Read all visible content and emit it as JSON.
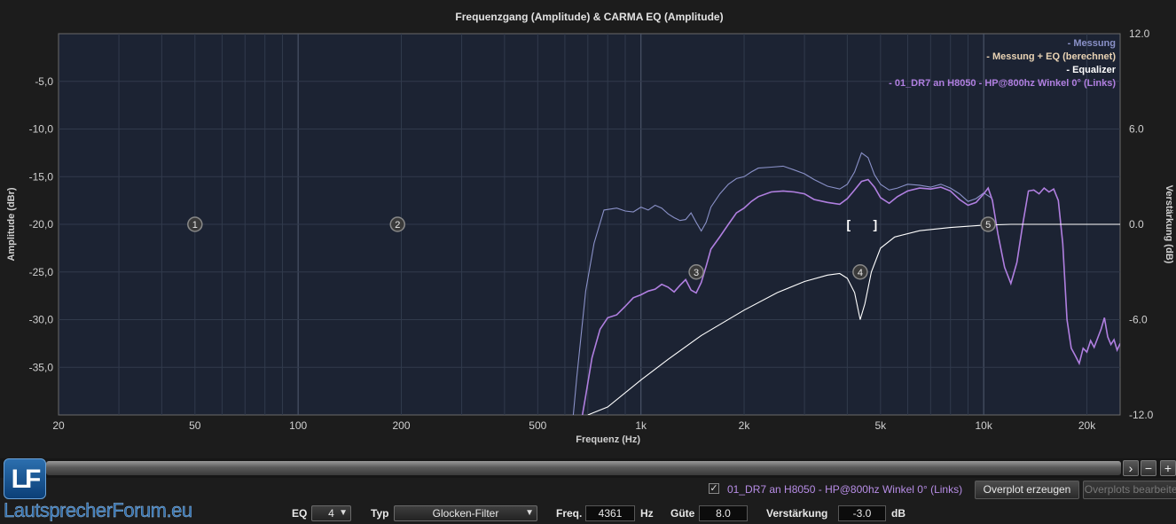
{
  "chart_data": {
    "type": "line",
    "title": "Frequenzgang (Amplitude) & CARMA EQ (Amplitude)",
    "xlabel": "Frequenz (Hz)",
    "ylabel": "Amplitude (dBr)",
    "y2label": "Verstärkung (dB)",
    "xscale": "log",
    "xlim": [
      20,
      25000
    ],
    "ylim": [
      -40,
      0
    ],
    "y2lim": [
      -12,
      12
    ],
    "x_ticks": [
      {
        "v": 20,
        "label": "20"
      },
      {
        "v": 50,
        "label": "50"
      },
      {
        "v": 100,
        "label": "100"
      },
      {
        "v": 200,
        "label": "200"
      },
      {
        "v": 500,
        "label": "500"
      },
      {
        "v": 1000,
        "label": "1k"
      },
      {
        "v": 2000,
        "label": "2k"
      },
      {
        "v": 5000,
        "label": "5k"
      },
      {
        "v": 10000,
        "label": "10k"
      },
      {
        "v": 20000,
        "label": "20k"
      }
    ],
    "y_ticks": [
      {
        "v": -5,
        "label": "-5,0"
      },
      {
        "v": -10,
        "label": "-10,0"
      },
      {
        "v": -15,
        "label": "-15,0"
      },
      {
        "v": -20,
        "label": "-20,0"
      },
      {
        "v": -25,
        "label": "-25,0"
      },
      {
        "v": -30,
        "label": "-30,0"
      },
      {
        "v": -35,
        "label": "-35,0"
      }
    ],
    "y2_ticks": [
      {
        "v": 12,
        "label": "12.0"
      },
      {
        "v": 6,
        "label": "6.0"
      },
      {
        "v": 0,
        "label": "0.0"
      },
      {
        "v": -6,
        "label": "-6.0"
      },
      {
        "v": -12,
        "label": "-12.0"
      }
    ],
    "grid": true,
    "legend_position": "top-right",
    "legend": [
      {
        "label": "- Messung",
        "color": "#8a91c8"
      },
      {
        "label": "- Messung + EQ (berechnet)",
        "color": "#e9d3b4"
      },
      {
        "label": "- Equalizer",
        "color": "#ffffff"
      },
      {
        "label": "- 01_DR7 an H8050 - HP@800hz Winkel 0° (Links)",
        "color": "#b07fe0"
      }
    ],
    "series": [
      {
        "name": "- Messung",
        "color": "#8a91c8",
        "axis": "left",
        "points": [
          [
            635,
            -40
          ],
          [
            650,
            -36
          ],
          [
            690,
            -27
          ],
          [
            730,
            -22
          ],
          [
            780,
            -18.5
          ],
          [
            850,
            -18.3
          ],
          [
            900,
            -18.6
          ],
          [
            950,
            -18.7
          ],
          [
            1000,
            -18.2
          ],
          [
            1050,
            -18.5
          ],
          [
            1100,
            -18.0
          ],
          [
            1150,
            -18.3
          ],
          [
            1200,
            -18.9
          ],
          [
            1250,
            -19.3
          ],
          [
            1300,
            -19.6
          ],
          [
            1350,
            -19.5
          ],
          [
            1400,
            -18.8
          ],
          [
            1450,
            -19.8
          ],
          [
            1500,
            -20.7
          ],
          [
            1550,
            -19.8
          ],
          [
            1600,
            -18.2
          ],
          [
            1700,
            -16.8
          ],
          [
            1800,
            -15.8
          ],
          [
            1900,
            -15.2
          ],
          [
            2000,
            -15.0
          ],
          [
            2100,
            -14.5
          ],
          [
            2200,
            -14.1
          ],
          [
            2400,
            -14.0
          ],
          [
            2600,
            -13.9
          ],
          [
            2800,
            -14.3
          ],
          [
            3000,
            -14.7
          ],
          [
            3200,
            -15.3
          ],
          [
            3500,
            -16.0
          ],
          [
            3800,
            -16.3
          ],
          [
            4000,
            -15.8
          ],
          [
            4200,
            -14.5
          ],
          [
            4400,
            -12.5
          ],
          [
            4600,
            -13.0
          ],
          [
            4800,
            -14.8
          ],
          [
            5000,
            -15.8
          ],
          [
            5300,
            -16.4
          ],
          [
            5600,
            -16.2
          ],
          [
            6000,
            -15.8
          ],
          [
            6500,
            -15.9
          ],
          [
            7000,
            -16.1
          ],
          [
            7500,
            -15.8
          ],
          [
            8000,
            -16.2
          ],
          [
            8500,
            -16.8
          ],
          [
            9000,
            -17.6
          ],
          [
            9500,
            -17.3
          ],
          [
            10000,
            -16.7
          ],
          [
            10500,
            -17.2
          ]
        ]
      },
      {
        "name": "- 01_DR7 an H8050 - HP@800hz Winkel 0° (Links)",
        "color": "#b07fe0",
        "axis": "left",
        "points": [
          [
            675,
            -40
          ],
          [
            690,
            -38
          ],
          [
            720,
            -34
          ],
          [
            760,
            -31
          ],
          [
            800,
            -29.8
          ],
          [
            850,
            -29.5
          ],
          [
            900,
            -28.6
          ],
          [
            950,
            -27.7
          ],
          [
            1000,
            -27.4
          ],
          [
            1050,
            -27.0
          ],
          [
            1100,
            -26.8
          ],
          [
            1150,
            -26.3
          ],
          [
            1200,
            -26.6
          ],
          [
            1250,
            -27.1
          ],
          [
            1300,
            -26.4
          ],
          [
            1350,
            -25.8
          ],
          [
            1400,
            -26.9
          ],
          [
            1450,
            -27.2
          ],
          [
            1500,
            -26.1
          ],
          [
            1550,
            -24.4
          ],
          [
            1600,
            -22.6
          ],
          [
            1700,
            -21.3
          ],
          [
            1800,
            -20.0
          ],
          [
            1900,
            -18.8
          ],
          [
            2000,
            -18.3
          ],
          [
            2100,
            -17.6
          ],
          [
            2200,
            -17.1
          ],
          [
            2400,
            -16.6
          ],
          [
            2600,
            -16.5
          ],
          [
            2800,
            -16.6
          ],
          [
            3000,
            -16.8
          ],
          [
            3200,
            -17.4
          ],
          [
            3500,
            -17.7
          ],
          [
            3800,
            -17.9
          ],
          [
            4000,
            -17.3
          ],
          [
            4200,
            -16.4
          ],
          [
            4400,
            -15.5
          ],
          [
            4600,
            -15.3
          ],
          [
            4800,
            -16.1
          ],
          [
            5000,
            -17.2
          ],
          [
            5300,
            -17.8
          ],
          [
            5600,
            -17.1
          ],
          [
            6000,
            -16.5
          ],
          [
            6500,
            -16.2
          ],
          [
            7000,
            -16.3
          ],
          [
            7500,
            -16.1
          ],
          [
            8000,
            -16.5
          ],
          [
            8500,
            -17.4
          ],
          [
            9000,
            -18.0
          ],
          [
            9500,
            -17.7
          ],
          [
            10000,
            -16.8
          ],
          [
            10300,
            -16.2
          ],
          [
            10600,
            -17.5
          ],
          [
            11000,
            -21.0
          ],
          [
            11500,
            -24.5
          ],
          [
            12000,
            -26.2
          ],
          [
            12500,
            -24.0
          ],
          [
            13000,
            -20.0
          ],
          [
            13500,
            -16.5
          ],
          [
            14000,
            -16.4
          ],
          [
            14500,
            -16.8
          ],
          [
            15000,
            -16.2
          ],
          [
            15500,
            -16.6
          ],
          [
            16000,
            -16.3
          ],
          [
            16500,
            -17.5
          ],
          [
            17000,
            -22.0
          ],
          [
            17500,
            -30.0
          ],
          [
            18000,
            -33.0
          ],
          [
            18500,
            -33.8
          ],
          [
            19000,
            -34.6
          ],
          [
            19500,
            -33.0
          ],
          [
            20000,
            -33.4
          ],
          [
            20500,
            -32.2
          ],
          [
            21000,
            -32.9
          ],
          [
            22000,
            -31.0
          ],
          [
            22500,
            -29.8
          ],
          [
            23000,
            -31.8
          ],
          [
            23500,
            -32.6
          ],
          [
            24000,
            -32.1
          ],
          [
            24500,
            -33.2
          ],
          [
            25000,
            -32.5
          ]
        ]
      },
      {
        "name": "- Equalizer",
        "color": "#ffffff",
        "axis": "right",
        "points": [
          [
            700,
            -12
          ],
          [
            800,
            -11.5
          ],
          [
            1000,
            -9.8
          ],
          [
            1200,
            -8.5
          ],
          [
            1500,
            -7.0
          ],
          [
            2000,
            -5.4
          ],
          [
            2500,
            -4.3
          ],
          [
            3000,
            -3.6
          ],
          [
            3500,
            -3.2
          ],
          [
            3800,
            -3.1
          ],
          [
            4000,
            -3.4
          ],
          [
            4200,
            -4.3
          ],
          [
            4361,
            -6.0
          ],
          [
            4500,
            -5.0
          ],
          [
            4700,
            -3.0
          ],
          [
            5000,
            -1.5
          ],
          [
            5500,
            -0.8
          ],
          [
            6500,
            -0.4
          ],
          [
            8000,
            -0.2
          ],
          [
            10000,
            -0.05
          ],
          [
            12000,
            0
          ],
          [
            25000,
            0
          ]
        ]
      }
    ],
    "markers": [
      {
        "n": "1",
        "x": 50,
        "y2": 0
      },
      {
        "n": "2",
        "x": 195,
        "y2": 0
      },
      {
        "n": "3",
        "x": 1450,
        "y2": -3.0
      },
      {
        "n": "4",
        "x": 4361,
        "y2": -3.0
      },
      {
        "n": "5",
        "x": 10300,
        "y2": 0
      }
    ]
  },
  "bottom": {
    "overplot_label": "01_DR7 an H8050 - HP@800hz Winkel 0° (Links)",
    "overplot_checked": "✓",
    "overplot_create": "Overplot erzeugen",
    "overplot_edit": "Overplots bearbeiten",
    "logo_initials": "LF",
    "logo_text": "LautsprecherForum.eu"
  },
  "eq": {
    "eq_label": "EQ",
    "eq_value": "4",
    "typ_label": "Typ",
    "typ_value": "Glocken-Filter",
    "freq_label": "Freq.",
    "freq_value": "4361",
    "freq_unit": "Hz",
    "guete_label": "Güte",
    "guete_value": "8.0",
    "gain_label": "Verstärkung",
    "gain_value": "-3.0",
    "gain_unit": "dB"
  },
  "scroll": {
    "right_arrow": "›",
    "minus": "−",
    "plus": "+"
  }
}
